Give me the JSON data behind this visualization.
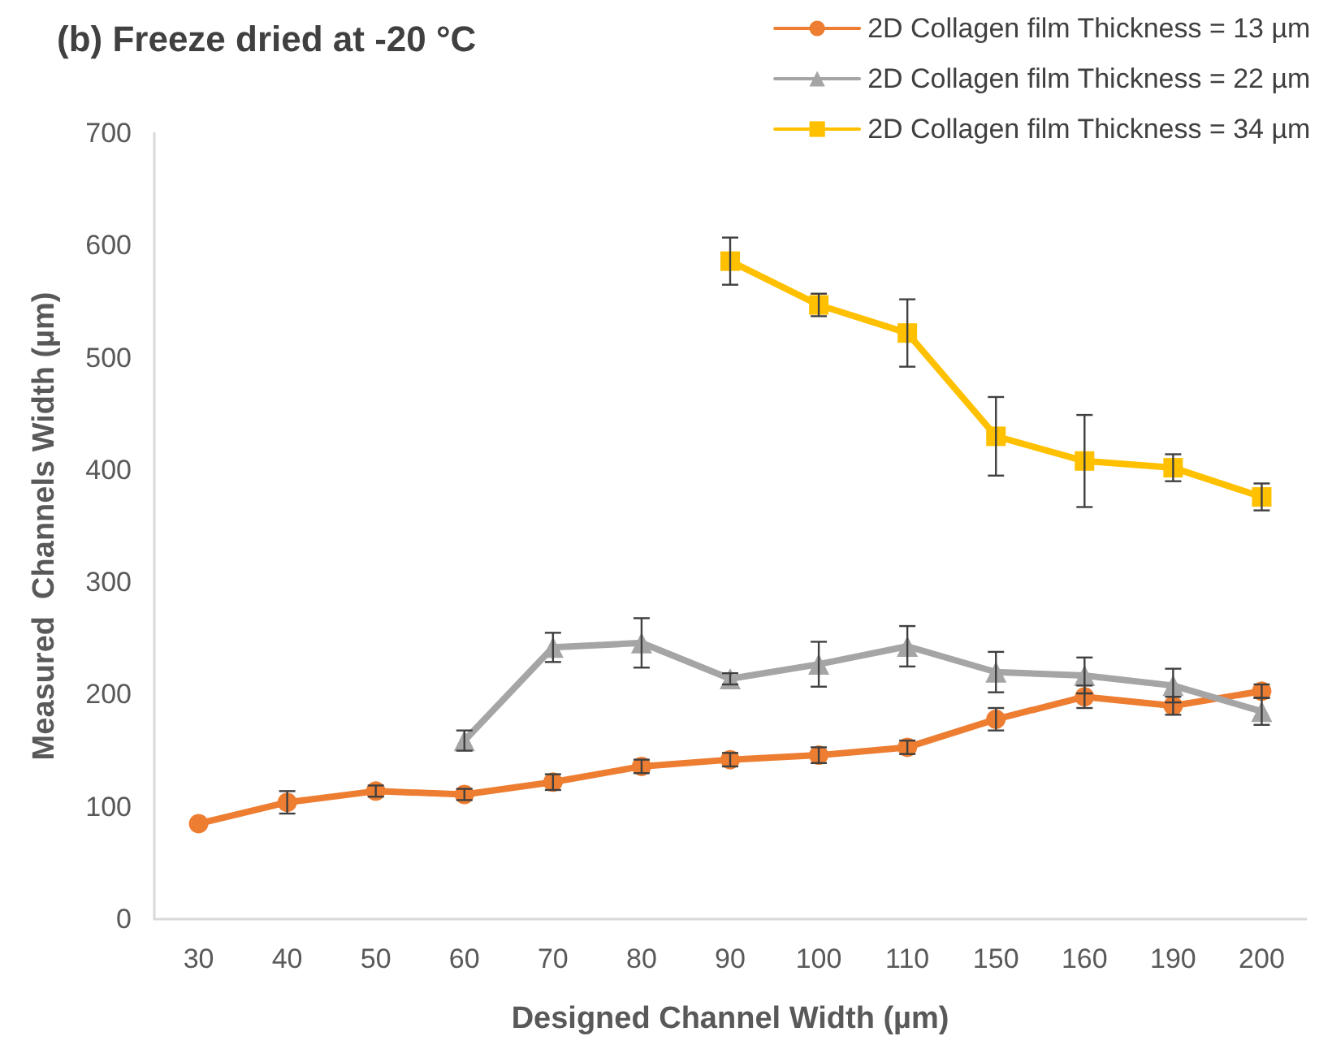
{
  "chart_data": {
    "type": "line",
    "title": "(b) Freeze dried at -20 °C",
    "xlabel": "Designed Channel Width (µm)",
    "ylabel": "Measured  Channels Width (µm)",
    "categories": [
      "30",
      "40",
      "50",
      "60",
      "70",
      "80",
      "90",
      "100",
      "110",
      "150",
      "160",
      "190",
      "200"
    ],
    "series": [
      {
        "name": "2D Collagen film Thickness = 13 µm",
        "color": "#ed7d31",
        "marker": "circle",
        "values": [
          85,
          104,
          114,
          111,
          122,
          136,
          142,
          146,
          153,
          178,
          198,
          190,
          203
        ],
        "errors": [
          null,
          10,
          5,
          5,
          7,
          6,
          6,
          7,
          6,
          10,
          10,
          8,
          6
        ]
      },
      {
        "name": "2D Collagen film Thickness = 22 µm",
        "color": "#a5a5a5",
        "marker": "triangle",
        "values": [
          null,
          null,
          null,
          159,
          242,
          246,
          214,
          227,
          243,
          220,
          217,
          208,
          185
        ],
        "errors": [
          null,
          null,
          null,
          9,
          13,
          22,
          5,
          20,
          18,
          18,
          16,
          15,
          12
        ]
      },
      {
        "name": "2D Collagen film Thickness = 34 µm",
        "color": "#ffc000",
        "marker": "square",
        "values": [
          null,
          null,
          null,
          null,
          null,
          null,
          586,
          547,
          522,
          430,
          408,
          402,
          376
        ],
        "errors": [
          null,
          null,
          null,
          null,
          null,
          null,
          21,
          10,
          30,
          35,
          41,
          12,
          12
        ]
      }
    ],
    "ylim": [
      0,
      700
    ],
    "yticks": [
      0,
      100,
      200,
      300,
      400,
      500,
      600,
      700
    ],
    "grid": false,
    "legend": "top right",
    "line_style": "solid"
  }
}
